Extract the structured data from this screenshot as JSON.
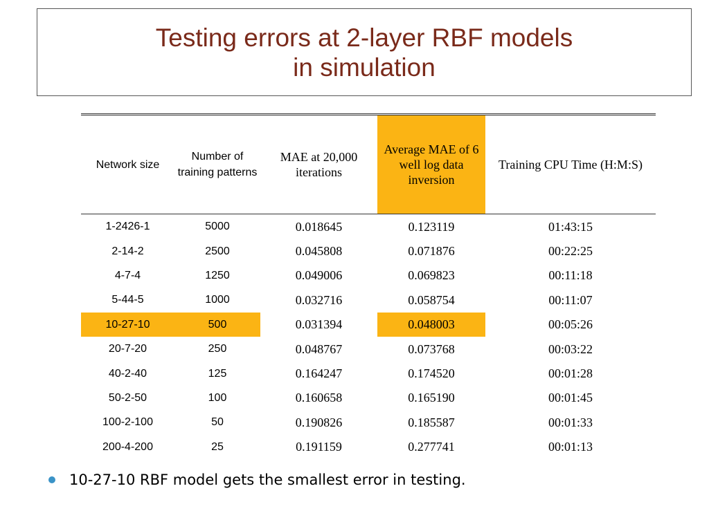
{
  "slide": {
    "title_line1": "Testing errors at 2-layer RBF models",
    "title_line2": "in simulation"
  },
  "table": {
    "headers": [
      "Network size",
      "Number of training patterns",
      "MAE at 20,000 iterations",
      "Average MAE of 6 well log data inversion",
      "Training CPU Time (H:M:S)"
    ],
    "rows": [
      [
        "1-2426-1",
        "5000",
        "0.018645",
        "0.123119",
        "01:43:15"
      ],
      [
        "2-14-2",
        "2500",
        "0.045808",
        "0.071876",
        "00:22:25"
      ],
      [
        "4-7-4",
        "1250",
        "0.049006",
        "0.069823",
        "00:11:18"
      ],
      [
        "5-44-5",
        "1000",
        "0.032716",
        "0.058754",
        "00:11:07"
      ],
      [
        "10-27-10",
        "500",
        "0.031394",
        "0.048003",
        "00:05:26"
      ],
      [
        "20-7-20",
        "250",
        "0.048767",
        "0.073768",
        "00:03:22"
      ],
      [
        "40-2-40",
        "125",
        "0.164247",
        "0.174520",
        "00:01:28"
      ],
      [
        "50-2-50",
        "100",
        "0.160658",
        "0.165190",
        "00:01:45"
      ],
      [
        "100-2-100",
        "50",
        "0.190826",
        "0.185587",
        "00:01:33"
      ],
      [
        "200-4-200",
        "25",
        "0.191159",
        "0.277741",
        "00:01:13"
      ]
    ],
    "highlight_color": "#fbb414"
  },
  "bullets": [
    "10-27-10 RBF model gets the smallest error in testing."
  ],
  "colors": {
    "title": "#7a2a1a",
    "bullet": "#3a93c7"
  }
}
